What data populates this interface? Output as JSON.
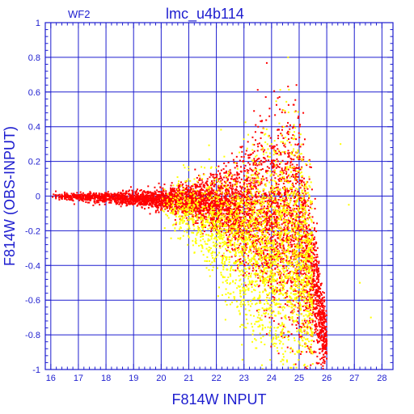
{
  "chart_data": {
    "type": "scatter",
    "title": "lmc_u4b114",
    "subtitle": "WF2",
    "xlabel": "F814W  INPUT",
    "ylabel": "F814W  (OBS-INPUT)",
    "xlim": [
      15.8,
      28.4
    ],
    "ylim": [
      -1,
      1
    ],
    "x_ticks": [
      16,
      17,
      18,
      19,
      20,
      21,
      22,
      23,
      24,
      25,
      26,
      27,
      28
    ],
    "x_tick_labels": [
      "16",
      "17",
      "18",
      "19",
      "20",
      "21",
      "22",
      "23",
      "24",
      "25",
      "26",
      "27",
      "28"
    ],
    "y_ticks": [
      -1,
      -0.8,
      -0.6,
      -0.4,
      -0.2,
      0,
      0.2,
      0.4,
      0.6,
      0.8,
      1
    ],
    "y_tick_labels": [
      "-1",
      "-0.8",
      "-0.6",
      "-0.4",
      "-0.2",
      "0",
      "0.2",
      "0.4",
      "0.6",
      "0.8",
      "1"
    ],
    "grid": true,
    "series": [
      {
        "color": "#ff0000",
        "envelope": {
          "x": [
            16.0,
            18.0,
            20.0,
            21.0,
            22.0,
            23.0,
            24.0,
            24.6,
            25.0,
            25.4,
            26.0
          ],
          "center": [
            0.0,
            -0.01,
            -0.02,
            -0.03,
            -0.05,
            -0.08,
            -0.12,
            -0.15,
            -0.2,
            -0.4,
            -0.85
          ],
          "spread": [
            0.02,
            0.03,
            0.06,
            0.1,
            0.16,
            0.3,
            0.5,
            0.6,
            0.6,
            0.45,
            0.15
          ]
        },
        "points": [
          [
            16.1,
            0.01
          ],
          [
            16.3,
            -0.01
          ],
          [
            16.6,
            0.0
          ],
          [
            17.0,
            -0.01
          ],
          [
            17.5,
            0.0
          ],
          [
            18.0,
            -0.01
          ],
          [
            18.5,
            -0.02
          ],
          [
            19.0,
            -0.01
          ],
          [
            19.5,
            -0.02
          ],
          [
            20.0,
            -0.03
          ],
          [
            20.5,
            0.03
          ],
          [
            21.0,
            -0.05
          ],
          [
            21.5,
            0.08
          ],
          [
            22.0,
            -0.1
          ],
          [
            22.5,
            0.15
          ],
          [
            23.0,
            -0.25
          ],
          [
            23.5,
            0.3
          ],
          [
            24.0,
            -0.4
          ],
          [
            24.3,
            0.5
          ],
          [
            24.5,
            -0.7
          ],
          [
            24.8,
            0.4
          ],
          [
            25.0,
            -0.8
          ],
          [
            25.3,
            -0.6
          ],
          [
            25.6,
            -0.9
          ],
          [
            25.9,
            -0.95
          ]
        ]
      },
      {
        "color": "#ffff00",
        "envelope": {
          "x": [
            20.0,
            21.0,
            22.0,
            23.0,
            24.0,
            24.6,
            25.0,
            25.5
          ],
          "center": [
            -0.05,
            -0.1,
            -0.18,
            -0.3,
            -0.35,
            -0.3,
            -0.3,
            -0.5
          ],
          "spread": [
            0.1,
            0.2,
            0.3,
            0.45,
            0.6,
            0.7,
            0.65,
            0.45
          ]
        },
        "points": [
          [
            20.5,
            -0.2
          ],
          [
            21.0,
            0.15
          ],
          [
            21.5,
            -0.3
          ],
          [
            22.0,
            -0.25
          ],
          [
            22.5,
            -0.45
          ],
          [
            23.0,
            -0.6
          ],
          [
            23.5,
            -0.7
          ],
          [
            24.0,
            0.3
          ],
          [
            24.3,
            -0.85
          ],
          [
            24.6,
            0.8
          ],
          [
            25.0,
            -0.9
          ],
          [
            26.8,
            -0.05
          ],
          [
            27.2,
            -0.5
          ],
          [
            27.6,
            -0.7
          ],
          [
            26.5,
            0.3
          ]
        ]
      }
    ]
  }
}
